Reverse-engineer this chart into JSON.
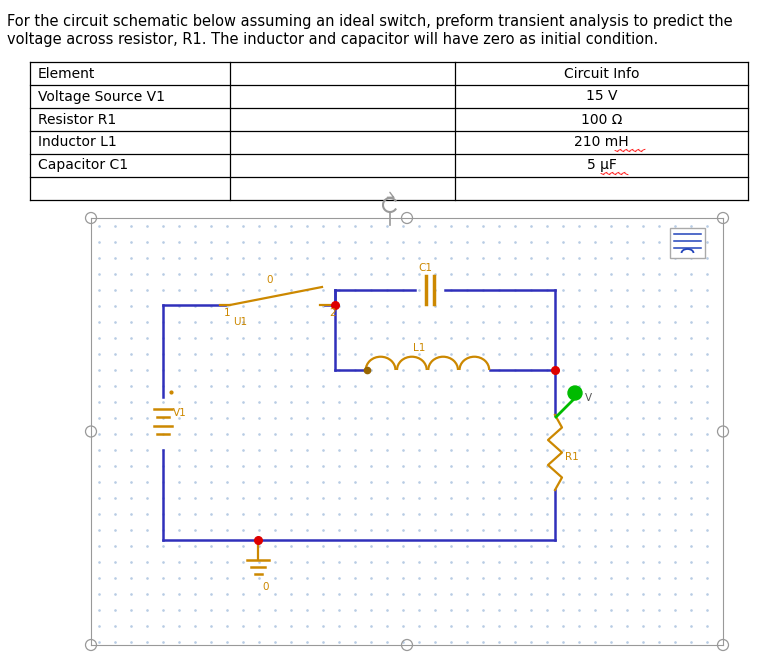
{
  "title_text1": "For the circuit schematic below assuming an ideal switch, preform transient analysis to predict the",
  "title_text2": "voltage across resistor, R1. The inductor and capacitor will have zero as initial condition.",
  "table_rows": [
    [
      "Element",
      "",
      "Circuit Info"
    ],
    [
      "Voltage Source V1",
      "",
      "15 V"
    ],
    [
      "Resistor R1",
      "",
      "100 Ω"
    ],
    [
      "Inductor L1",
      "",
      "210 mH"
    ],
    [
      "Capacitor C1",
      "",
      "5 μF"
    ]
  ],
  "bg_color": "#ffffff",
  "circuit_dot_color": "#b8cce4",
  "wire_color": "#3030bb",
  "component_color": "#cc8800",
  "red_color": "#dd0000",
  "green_color": "#00bb00",
  "gray_color": "#999999",
  "white": "#ffffff",
  "table_line_color": "#000000",
  "text_color": "#000000",
  "font_size_title": 10.5,
  "font_size_table": 10,
  "font_size_small": 7.5
}
